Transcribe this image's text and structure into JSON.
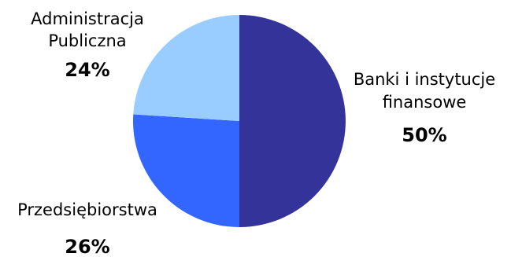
{
  "chart_data": {
    "type": "pie",
    "title": "",
    "slices": [
      {
        "label_lines": [
          "Banki i instytucje",
          "finansowe"
        ],
        "percent_label": "50%",
        "value": 50,
        "color": "#333399"
      },
      {
        "label_lines": [
          "Przedsiębiorstwa"
        ],
        "percent_label": "26%",
        "value": 26,
        "color": "#3366FF"
      },
      {
        "label_lines": [
          "Administracja",
          "Publiczna"
        ],
        "percent_label": "24%",
        "value": 24,
        "color": "#99CCFF"
      }
    ],
    "start_angle_deg": 0,
    "direction": "clockwise",
    "legend": "none"
  }
}
